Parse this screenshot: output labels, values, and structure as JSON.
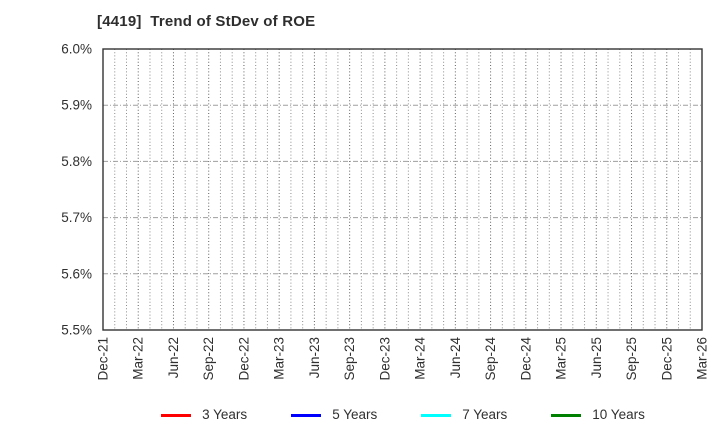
{
  "chart_data": {
    "type": "line",
    "title": "[4419]  Trend of StDev of ROE",
    "x_tick_labels": [
      "Dec-21",
      "Mar-22",
      "Jun-22",
      "Sep-22",
      "Dec-22",
      "Mar-23",
      "Jun-23",
      "Sep-23",
      "Dec-23",
      "Mar-24",
      "Jun-24",
      "Sep-24",
      "Dec-24",
      "Mar-25",
      "Jun-25",
      "Sep-25",
      "Dec-25",
      "Mar-26"
    ],
    "x_minor_divisions_per_interval": 3,
    "ylim": [
      5.5,
      6.0
    ],
    "y_ticks": [
      5.5,
      5.6,
      5.7,
      5.8,
      5.9,
      6.0
    ],
    "y_tick_labels": [
      "5.5%",
      "5.6%",
      "5.7%",
      "5.8%",
      "5.9%",
      "6.0%"
    ],
    "grid": true,
    "legend_position": "bottom",
    "series": [
      {
        "name": "3 Years",
        "color": "#ff0000",
        "values": []
      },
      {
        "name": "5 Years",
        "color": "#0000ff",
        "values": []
      },
      {
        "name": "7 Years",
        "color": "#00ffff",
        "values": []
      },
      {
        "name": "10 Years",
        "color": "#008000",
        "values": []
      }
    ]
  }
}
